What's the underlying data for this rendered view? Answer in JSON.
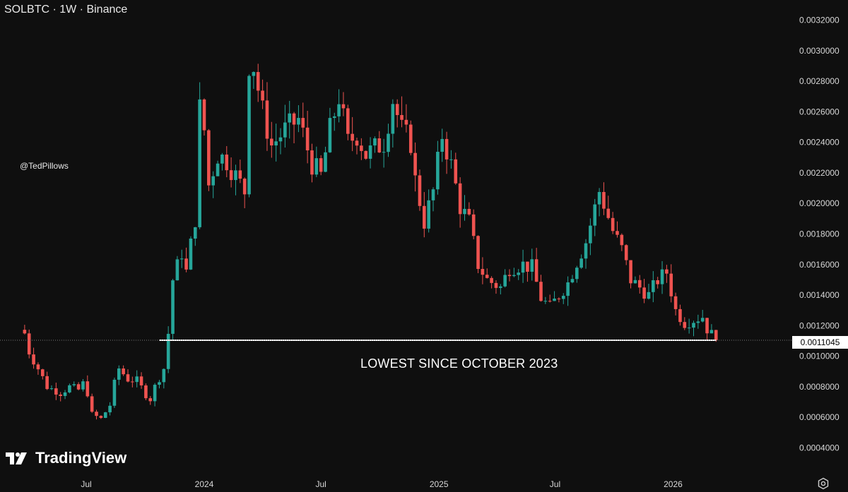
{
  "header": {
    "symbol_line": "SOLBTC · 1W · Binance"
  },
  "watermark": {
    "handle": "@TedPillows"
  },
  "brand": {
    "name": "TradingView",
    "logo_icon": "tradingview-logo-icon"
  },
  "annotation": {
    "text": "LOWEST SINCE OCTOBER 2023"
  },
  "last_price_label": "0.0011045",
  "colors": {
    "up": "#26a69a",
    "down": "#ef5350",
    "background": "#0f0f0f",
    "support_line": "#ffffff"
  },
  "controls": {
    "settings_icon": "gear-icon"
  },
  "chart_data": {
    "type": "candlestick",
    "symbol": "SOLBTC",
    "timeframe": "1W",
    "exchange": "Binance",
    "y_scale": "linear",
    "ylim": [
      0.00034,
      0.00326
    ],
    "y_ticks": [
      "0.0004000",
      "0.0006000",
      "0.0008000",
      "0.0010000",
      "0.0012000",
      "0.0014000",
      "0.0016000",
      "0.0018000",
      "0.0020000",
      "0.0022000",
      "0.0024000",
      "0.0026000",
      "0.0028000",
      "0.0030000",
      "0.0032000"
    ],
    "x_ticks": [
      "Jul",
      "2024",
      "Jul",
      "2025",
      "Jul",
      "2026"
    ],
    "grid": false,
    "last_price": 0.0011045,
    "horizontal_line": {
      "value": 0.0011045,
      "from": "2023-10-23",
      "label": "LOWEST SINCE OCTOBER 2023"
    },
    "start_week": "2023-03-27",
    "close_path": [
      [
        "2023-03-27",
        0.00115
      ],
      [
        "2023-04-03",
        0.00103
      ],
      [
        "2023-04-17",
        0.00092
      ],
      [
        "2023-05-01",
        0.0008
      ],
      [
        "2023-05-22",
        0.00076
      ],
      [
        "2023-06-05",
        0.0008
      ],
      [
        "2023-06-19",
        0.00078
      ],
      [
        "2023-06-26",
        0.00082
      ],
      [
        "2023-07-03",
        0.00076
      ],
      [
        "2023-07-10",
        0.00062
      ],
      [
        "2023-07-24",
        0.00059
      ],
      [
        "2023-08-07",
        0.00068
      ],
      [
        "2023-08-14",
        0.00082
      ],
      [
        "2023-08-21",
        0.00092
      ],
      [
        "2023-09-04",
        0.00085
      ],
      [
        "2023-09-18",
        0.00084
      ],
      [
        "2023-10-02",
        0.00075
      ],
      [
        "2023-10-09",
        0.00072
      ],
      [
        "2023-10-16",
        0.0008
      ],
      [
        "2023-10-30",
        0.00092
      ],
      [
        "2023-11-06",
        0.00115
      ],
      [
        "2023-11-13",
        0.0015
      ],
      [
        "2023-11-27",
        0.00168
      ],
      [
        "2023-12-04",
        0.00155
      ],
      [
        "2023-12-11",
        0.00173
      ],
      [
        "2023-12-18",
        0.0019
      ],
      [
        "2023-12-25",
        0.00262
      ],
      [
        "2024-01-01",
        0.00248
      ],
      [
        "2024-01-08",
        0.00212
      ],
      [
        "2024-01-22",
        0.00232
      ],
      [
        "2024-02-05",
        0.00228
      ],
      [
        "2024-02-19",
        0.00218
      ],
      [
        "2024-03-04",
        0.00208
      ],
      [
        "2024-03-11",
        0.00292
      ],
      [
        "2024-03-18",
        0.0029
      ],
      [
        "2024-04-01",
        0.0026
      ],
      [
        "2024-04-15",
        0.00238
      ],
      [
        "2024-05-06",
        0.00248
      ],
      [
        "2024-05-27",
        0.00255
      ],
      [
        "2024-06-17",
        0.00226
      ],
      [
        "2024-07-01",
        0.00218
      ],
      [
        "2024-07-15",
        0.00248
      ],
      [
        "2024-07-29",
        0.0027
      ],
      [
        "2024-08-12",
        0.0024
      ],
      [
        "2024-08-26",
        0.00245
      ],
      [
        "2024-09-09",
        0.00232
      ],
      [
        "2024-09-23",
        0.00236
      ],
      [
        "2024-10-07",
        0.0024
      ],
      [
        "2024-10-21",
        0.00268
      ],
      [
        "2024-11-04",
        0.00248
      ],
      [
        "2024-11-18",
        0.0024
      ],
      [
        "2024-11-25",
        0.00215
      ],
      [
        "2024-12-09",
        0.00188
      ],
      [
        "2024-12-23",
        0.00208
      ],
      [
        "2025-01-06",
        0.00245
      ],
      [
        "2025-01-20",
        0.00225
      ],
      [
        "2025-02-03",
        0.00198
      ],
      [
        "2025-02-17",
        0.00188
      ],
      [
        "2025-03-03",
        0.0016
      ],
      [
        "2025-03-17",
        0.0015
      ],
      [
        "2025-04-07",
        0.00145
      ],
      [
        "2025-04-21",
        0.00158
      ],
      [
        "2025-05-12",
        0.0016
      ],
      [
        "2025-05-26",
        0.00158
      ],
      [
        "2025-06-09",
        0.00138
      ],
      [
        "2025-06-23",
        0.00132
      ],
      [
        "2025-07-07",
        0.0014
      ],
      [
        "2025-07-21",
        0.00148
      ],
      [
        "2025-08-04",
        0.00162
      ],
      [
        "2025-08-18",
        0.00175
      ],
      [
        "2025-09-08",
        0.00208
      ],
      [
        "2025-09-15",
        0.002
      ],
      [
        "2025-09-29",
        0.00182
      ],
      [
        "2025-10-13",
        0.0017
      ],
      [
        "2025-10-27",
        0.0015
      ],
      [
        "2025-11-10",
        0.00145
      ],
      [
        "2025-11-24",
        0.0014
      ],
      [
        "2025-12-08",
        0.0015
      ],
      [
        "2025-12-22",
        0.00155
      ],
      [
        "2026-01-05",
        0.0013
      ],
      [
        "2026-01-19",
        0.00122
      ],
      [
        "2026-02-02",
        0.00124
      ],
      [
        "2026-02-16",
        0.00126
      ],
      [
        "2026-02-23",
        0.00118
      ],
      [
        "2026-03-09",
        0.0011045
      ]
    ]
  }
}
